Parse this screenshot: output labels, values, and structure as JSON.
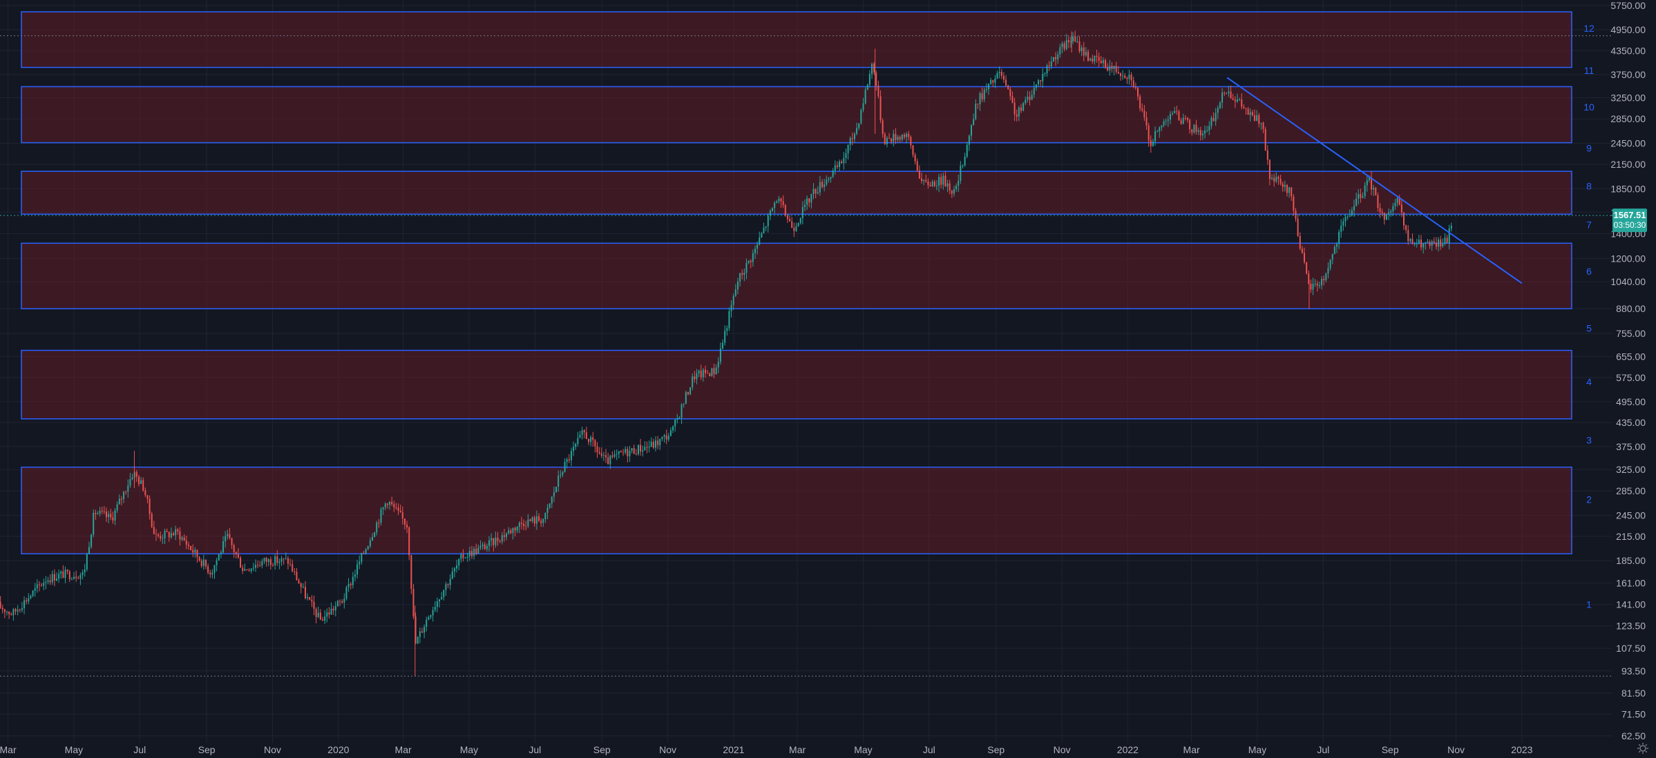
{
  "colors": {
    "background": "#131722",
    "grid": "#1f2433",
    "axis_text": "#b2b5be",
    "up_candle": "#26a69a",
    "down_candle": "#ef5350",
    "zone_fill": "rgba(120,28,40,0.42)",
    "zone_border": "#2962ff",
    "trendline": "#2962ff",
    "zone_label": "#2962ff",
    "price_label_bg": "#26a69a",
    "dotted_line": "#787b86"
  },
  "icons": {
    "settings": "gear-icon"
  },
  "chart_data": {
    "type": "candlestick",
    "scale": "log",
    "ylim": [
      62.5,
      5750
    ],
    "y_ticks": [
      "5750.00",
      "4950.00",
      "4350.00",
      "3750.00",
      "3250.00",
      "2850.00",
      "2450.00",
      "2150.00",
      "1850.00",
      "1600.00",
      "1400.00",
      "1200.00",
      "1040.00",
      "880.00",
      "755.00",
      "655.00",
      "575.00",
      "495.00",
      "435.00",
      "375.00",
      "325.00",
      "285.00",
      "245.00",
      "215.00",
      "185.00",
      "161.00",
      "141.00",
      "123.50",
      "107.50",
      "93.50",
      "81.50",
      "71.50",
      "62.50"
    ],
    "x_ticks": [
      {
        "label": "Mar",
        "date": "2019-03-01"
      },
      {
        "label": "May",
        "date": "2019-05-01"
      },
      {
        "label": "Jul",
        "date": "2019-07-01"
      },
      {
        "label": "Sep",
        "date": "2019-09-01"
      },
      {
        "label": "Nov",
        "date": "2019-11-01"
      },
      {
        "label": "2020",
        "date": "2020-01-01"
      },
      {
        "label": "Mar",
        "date": "2020-03-01"
      },
      {
        "label": "May",
        "date": "2020-05-01"
      },
      {
        "label": "Jul",
        "date": "2020-07-01"
      },
      {
        "label": "Sep",
        "date": "2020-09-01"
      },
      {
        "label": "Nov",
        "date": "2020-11-01"
      },
      {
        "label": "2021",
        "date": "2021-01-01"
      },
      {
        "label": "Mar",
        "date": "2021-03-01"
      },
      {
        "label": "May",
        "date": "2021-05-01"
      },
      {
        "label": "Jul",
        "date": "2021-07-01"
      },
      {
        "label": "Sep",
        "date": "2021-09-01"
      },
      {
        "label": "Nov",
        "date": "2021-11-01"
      },
      {
        "label": "2022",
        "date": "2022-01-01"
      },
      {
        "label": "Mar",
        "date": "2022-03-01"
      },
      {
        "label": "May",
        "date": "2022-05-01"
      },
      {
        "label": "Jul",
        "date": "2022-07-01"
      },
      {
        "label": "Sep",
        "date": "2022-09-01"
      },
      {
        "label": "Nov",
        "date": "2022-11-01"
      },
      {
        "label": "2023",
        "date": "2023-01-01"
      }
    ],
    "price_path": [
      {
        "date": "2019-02-20",
        "price": 140
      },
      {
        "date": "2019-03-05",
        "price": 133
      },
      {
        "date": "2019-04-05",
        "price": 165
      },
      {
        "date": "2019-04-20",
        "price": 170
      },
      {
        "date": "2019-05-10",
        "price": 170
      },
      {
        "date": "2019-05-20",
        "price": 250
      },
      {
        "date": "2019-06-05",
        "price": 240
      },
      {
        "date": "2019-06-25",
        "price": 320
      },
      {
        "date": "2019-07-05",
        "price": 290
      },
      {
        "date": "2019-07-15",
        "price": 215
      },
      {
        "date": "2019-08-05",
        "price": 220
      },
      {
        "date": "2019-09-05",
        "price": 172
      },
      {
        "date": "2019-09-20",
        "price": 215
      },
      {
        "date": "2019-10-05",
        "price": 175
      },
      {
        "date": "2019-10-25",
        "price": 185
      },
      {
        "date": "2019-11-15",
        "price": 185
      },
      {
        "date": "2019-12-01",
        "price": 150
      },
      {
        "date": "2019-12-15",
        "price": 128
      },
      {
        "date": "2020-01-05",
        "price": 145
      },
      {
        "date": "2020-02-15",
        "price": 270
      },
      {
        "date": "2020-03-05",
        "price": 230
      },
      {
        "date": "2020-03-12",
        "price": 110
      },
      {
        "date": "2020-03-25",
        "price": 133
      },
      {
        "date": "2020-04-25",
        "price": 190
      },
      {
        "date": "2020-05-20",
        "price": 205
      },
      {
        "date": "2020-06-20",
        "price": 235
      },
      {
        "date": "2020-07-10",
        "price": 240
      },
      {
        "date": "2020-07-25",
        "price": 320
      },
      {
        "date": "2020-08-15",
        "price": 410
      },
      {
        "date": "2020-09-05",
        "price": 340
      },
      {
        "date": "2020-09-20",
        "price": 360
      },
      {
        "date": "2020-10-20",
        "price": 380
      },
      {
        "date": "2020-11-05",
        "price": 410
      },
      {
        "date": "2020-11-25",
        "price": 580
      },
      {
        "date": "2020-12-15",
        "price": 600
      },
      {
        "date": "2021-01-05",
        "price": 1050
      },
      {
        "date": "2021-01-20",
        "price": 1250
      },
      {
        "date": "2021-02-10",
        "price": 1750
      },
      {
        "date": "2021-02-25",
        "price": 1450
      },
      {
        "date": "2021-03-15",
        "price": 1800
      },
      {
        "date": "2021-04-10",
        "price": 2150
      },
      {
        "date": "2021-04-25",
        "price": 2700
      },
      {
        "date": "2021-05-10",
        "price": 4100
      },
      {
        "date": "2021-05-20",
        "price": 2500
      },
      {
        "date": "2021-06-10",
        "price": 2600
      },
      {
        "date": "2021-06-25",
        "price": 1900
      },
      {
        "date": "2021-07-15",
        "price": 1950
      },
      {
        "date": "2021-07-25",
        "price": 1800
      },
      {
        "date": "2021-08-15",
        "price": 3200
      },
      {
        "date": "2021-09-05",
        "price": 3800
      },
      {
        "date": "2021-09-20",
        "price": 2900
      },
      {
        "date": "2021-10-05",
        "price": 3400
      },
      {
        "date": "2021-10-25",
        "price": 4200
      },
      {
        "date": "2021-11-10",
        "price": 4700
      },
      {
        "date": "2021-11-25",
        "price": 4200
      },
      {
        "date": "2021-12-10",
        "price": 4000
      },
      {
        "date": "2022-01-05",
        "price": 3700
      },
      {
        "date": "2022-01-22",
        "price": 2450
      },
      {
        "date": "2022-02-10",
        "price": 3000
      },
      {
        "date": "2022-03-01",
        "price": 2700
      },
      {
        "date": "2022-03-15",
        "price": 2600
      },
      {
        "date": "2022-04-02",
        "price": 3450
      },
      {
        "date": "2022-04-25",
        "price": 2900
      },
      {
        "date": "2022-05-05",
        "price": 2800
      },
      {
        "date": "2022-05-12",
        "price": 2000
      },
      {
        "date": "2022-06-01",
        "price": 1800
      },
      {
        "date": "2022-06-12",
        "price": 1200
      },
      {
        "date": "2022-06-18",
        "price": 1000
      },
      {
        "date": "2022-07-01",
        "price": 1050
      },
      {
        "date": "2022-07-20",
        "price": 1500
      },
      {
        "date": "2022-08-13",
        "price": 1950
      },
      {
        "date": "2022-08-25",
        "price": 1550
      },
      {
        "date": "2022-09-08",
        "price": 1700
      },
      {
        "date": "2022-09-18",
        "price": 1330
      },
      {
        "date": "2022-10-10",
        "price": 1300
      },
      {
        "date": "2022-10-24",
        "price": 1340
      },
      {
        "date": "2022-10-29",
        "price": 1567.51
      }
    ],
    "zones": [
      {
        "label": "2",
        "low": 193,
        "high": 330
      },
      {
        "label": "4",
        "low": 445,
        "high": 680
      },
      {
        "label": "6",
        "low": 880,
        "high": 1320
      },
      {
        "label": "8",
        "low": 1580,
        "high": 2060
      },
      {
        "label": "10",
        "low": 2460,
        "high": 3480
      },
      {
        "label": "12",
        "low": 3920,
        "high": 5530
      }
    ],
    "level_labels": [
      {
        "label": "1",
        "price": 141
      },
      {
        "label": "2",
        "price": 270
      },
      {
        "label": "3",
        "price": 390
      },
      {
        "label": "4",
        "price": 560
      },
      {
        "label": "5",
        "price": 780
      },
      {
        "label": "6",
        "price": 1110
      },
      {
        "label": "7",
        "price": 1480
      },
      {
        "label": "8",
        "price": 1880
      },
      {
        "label": "9",
        "price": 2380
      },
      {
        "label": "10",
        "price": 3070
      },
      {
        "label": "11",
        "price": 3850
      },
      {
        "label": "12",
        "price": 4990
      }
    ],
    "trendline": {
      "start": {
        "date": "2022-04-03",
        "price": 3680
      },
      "end": {
        "date": "2023-01-01",
        "price": 1030
      }
    },
    "dotted_lines": [
      4770,
      90.5
    ],
    "last_price": {
      "value": "1567.51",
      "countdown": "03:50:30",
      "price": 1567.51
    }
  }
}
